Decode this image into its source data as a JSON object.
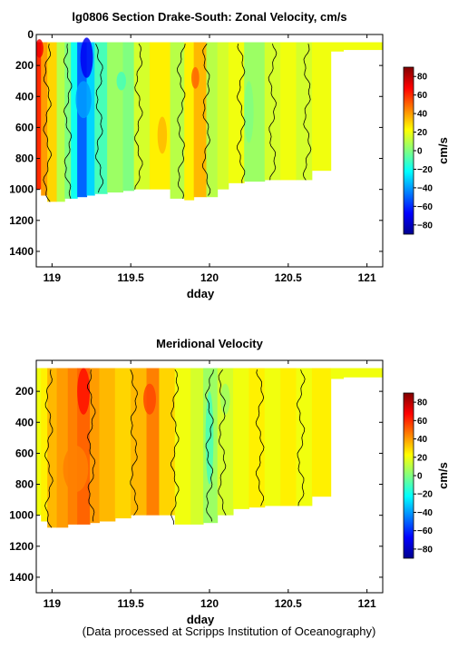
{
  "footer": "(Data processed at Scripps Institution of Oceanography)",
  "colormap": [
    "#00008f",
    "#0000ff",
    "#0080ff",
    "#00ffff",
    "#80ff80",
    "#ffff00",
    "#ff8000",
    "#ff0000",
    "#800000"
  ],
  "chart_data": [
    {
      "type": "heatmap",
      "title": "lg0806 Section Drake-South: Zonal Velocity, cm/s",
      "xlabel": "dday",
      "ylabel": "",
      "colorbar_label": "cm/s",
      "xlim": [
        118.9,
        121.1
      ],
      "ylim": [
        1500,
        0
      ],
      "xticks": [
        119,
        119.5,
        120,
        120.5,
        121
      ],
      "xtick_labels": [
        "119",
        "119.5",
        "120",
        "120.5",
        "121"
      ],
      "yticks": [
        0,
        200,
        400,
        600,
        800,
        1000,
        1200,
        1400
      ],
      "ytick_labels": [
        "0",
        "200",
        "400",
        "600",
        "800",
        "1000",
        "1200",
        "1400"
      ],
      "clim": [
        -90,
        90
      ],
      "cbticks": [
        80,
        60,
        40,
        20,
        0,
        -20,
        -40,
        -60,
        -80
      ],
      "cbtick_labels": [
        "80",
        "60",
        "40",
        "20",
        "0",
        "−20",
        "−40",
        "−60",
        "−80"
      ],
      "columns": [
        {
          "x0": 118.9,
          "x1": 118.93,
          "v": 60,
          "bottom": 1000
        },
        {
          "x0": 118.93,
          "x1": 118.97,
          "v": 40,
          "bottom": 1040
        },
        {
          "x0": 118.97,
          "x1": 119.03,
          "v": 30,
          "bottom": 1080
        },
        {
          "x0": 119.03,
          "x1": 119.08,
          "v": 10,
          "bottom": 1080
        },
        {
          "x0": 119.08,
          "x1": 119.12,
          "v": 0,
          "bottom": 1060
        },
        {
          "x0": 119.12,
          "x1": 119.16,
          "v": -20,
          "bottom": 1060
        },
        {
          "x0": 119.16,
          "x1": 119.22,
          "v": -50,
          "bottom": 1050
        },
        {
          "x0": 119.22,
          "x1": 119.27,
          "v": -30,
          "bottom": 1040
        },
        {
          "x0": 119.27,
          "x1": 119.35,
          "v": -10,
          "bottom": 1030
        },
        {
          "x0": 119.35,
          "x1": 119.45,
          "v": 5,
          "bottom": 1020
        },
        {
          "x0": 119.45,
          "x1": 119.52,
          "v": 0,
          "bottom": 1010
        },
        {
          "x0": 119.52,
          "x1": 119.62,
          "v": 15,
          "bottom": 1000
        },
        {
          "x0": 119.62,
          "x1": 119.75,
          "v": 25,
          "bottom": 1000
        },
        {
          "x0": 119.75,
          "x1": 119.84,
          "v": 10,
          "bottom": 1060
        },
        {
          "x0": 119.84,
          "x1": 119.9,
          "v": 25,
          "bottom": 1070
        },
        {
          "x0": 119.9,
          "x1": 119.98,
          "v": 35,
          "bottom": 1050
        },
        {
          "x0": 119.98,
          "x1": 120.05,
          "v": 10,
          "bottom": 1050
        },
        {
          "x0": 120.05,
          "x1": 120.12,
          "v": 15,
          "bottom": 1000
        },
        {
          "x0": 120.12,
          "x1": 120.22,
          "v": 20,
          "bottom": 960
        },
        {
          "x0": 120.22,
          "x1": 120.35,
          "v": 5,
          "bottom": 950
        },
        {
          "x0": 120.35,
          "x1": 120.45,
          "v": 15,
          "bottom": 940
        },
        {
          "x0": 120.45,
          "x1": 120.55,
          "v": 20,
          "bottom": 940
        },
        {
          "x0": 120.55,
          "x1": 120.65,
          "v": 15,
          "bottom": 940
        },
        {
          "x0": 120.65,
          "x1": 120.77,
          "v": 20,
          "bottom": 880
        },
        {
          "x0": 120.77,
          "x1": 120.85,
          "v": 20,
          "bottom": 110
        },
        {
          "x0": 120.85,
          "x1": 121.1,
          "v": 20,
          "bottom": 100
        }
      ],
      "patches": [
        {
          "x": 119.22,
          "y": 150,
          "rx": 0.04,
          "ry": 130,
          "v": -70
        },
        {
          "x": 119.2,
          "y": 420,
          "rx": 0.05,
          "ry": 120,
          "v": -40
        },
        {
          "x": 118.92,
          "y": 90,
          "rx": 0.025,
          "ry": 60,
          "v": 70
        },
        {
          "x": 119.91,
          "y": 280,
          "rx": 0.025,
          "ry": 70,
          "v": 50
        },
        {
          "x": 119.44,
          "y": 300,
          "rx": 0.03,
          "ry": 60,
          "v": -10
        },
        {
          "x": 120.25,
          "y": 500,
          "rx": 0.03,
          "ry": 200,
          "v": 0
        },
        {
          "x": 119.7,
          "y": 650,
          "rx": 0.03,
          "ry": 120,
          "v": 35
        }
      ],
      "contour_x": [
        118.97,
        119.1,
        119.3,
        119.55,
        119.82,
        119.98,
        120.2,
        120.4,
        120.62
      ]
    },
    {
      "type": "heatmap",
      "title": "Meridional Velocity",
      "xlabel": "dday",
      "ylabel": "",
      "colorbar_label": "cm/s",
      "xlim": [
        118.9,
        121.1
      ],
      "ylim": [
        1500,
        0
      ],
      "xticks": [
        119,
        119.5,
        120,
        120.5,
        121
      ],
      "xtick_labels": [
        "119",
        "119.5",
        "120",
        "120.5",
        "121"
      ],
      "yticks": [
        200,
        400,
        600,
        800,
        1000,
        1200,
        1400
      ],
      "ytick_labels": [
        "200",
        "400",
        "600",
        "800",
        "1000",
        "1200",
        "1400"
      ],
      "clim": [
        -90,
        90
      ],
      "cbticks": [
        80,
        60,
        40,
        20,
        0,
        -20,
        -40,
        -60,
        -80
      ],
      "cbtick_labels": [
        "80",
        "60",
        "40",
        "20",
        "0",
        "−20",
        "−40",
        "−60",
        "−80"
      ],
      "columns": [
        {
          "x0": 118.9,
          "x1": 118.93,
          "v": 20,
          "bottom": 1000
        },
        {
          "x0": 118.93,
          "x1": 118.97,
          "v": 25,
          "bottom": 1040
        },
        {
          "x0": 118.97,
          "x1": 119.03,
          "v": 35,
          "bottom": 1080
        },
        {
          "x0": 119.03,
          "x1": 119.1,
          "v": 40,
          "bottom": 1080
        },
        {
          "x0": 119.1,
          "x1": 119.16,
          "v": 45,
          "bottom": 1060
        },
        {
          "x0": 119.16,
          "x1": 119.24,
          "v": 50,
          "bottom": 1060
        },
        {
          "x0": 119.24,
          "x1": 119.3,
          "v": 40,
          "bottom": 1050
        },
        {
          "x0": 119.3,
          "x1": 119.4,
          "v": 35,
          "bottom": 1040
        },
        {
          "x0": 119.4,
          "x1": 119.5,
          "v": 30,
          "bottom": 1020
        },
        {
          "x0": 119.5,
          "x1": 119.6,
          "v": 35,
          "bottom": 1000
        },
        {
          "x0": 119.6,
          "x1": 119.68,
          "v": 45,
          "bottom": 1000
        },
        {
          "x0": 119.68,
          "x1": 119.78,
          "v": 30,
          "bottom": 1000
        },
        {
          "x0": 119.78,
          "x1": 119.88,
          "v": 20,
          "bottom": 1060
        },
        {
          "x0": 119.88,
          "x1": 119.96,
          "v": 15,
          "bottom": 1060
        },
        {
          "x0": 119.96,
          "x1": 120.05,
          "v": 5,
          "bottom": 1050
        },
        {
          "x0": 120.05,
          "x1": 120.15,
          "v": 15,
          "bottom": 1000
        },
        {
          "x0": 120.15,
          "x1": 120.25,
          "v": 20,
          "bottom": 960
        },
        {
          "x0": 120.25,
          "x1": 120.35,
          "v": 25,
          "bottom": 950
        },
        {
          "x0": 120.35,
          "x1": 120.45,
          "v": 20,
          "bottom": 940
        },
        {
          "x0": 120.45,
          "x1": 120.55,
          "v": 25,
          "bottom": 940
        },
        {
          "x0": 120.55,
          "x1": 120.65,
          "v": 20,
          "bottom": 940
        },
        {
          "x0": 120.65,
          "x1": 120.77,
          "v": 25,
          "bottom": 880
        },
        {
          "x0": 120.77,
          "x1": 120.85,
          "v": 20,
          "bottom": 120
        },
        {
          "x0": 120.85,
          "x1": 121.1,
          "v": 20,
          "bottom": 110
        }
      ],
      "patches": [
        {
          "x": 119.2,
          "y": 200,
          "rx": 0.04,
          "ry": 150,
          "v": 65
        },
        {
          "x": 119.62,
          "y": 250,
          "rx": 0.04,
          "ry": 100,
          "v": 55
        },
        {
          "x": 119.15,
          "y": 700,
          "rx": 0.08,
          "ry": 150,
          "v": 45
        },
        {
          "x": 120.0,
          "y": 500,
          "rx": 0.025,
          "ry": 300,
          "v": -10
        },
        {
          "x": 120.1,
          "y": 250,
          "rx": 0.03,
          "ry": 100,
          "v": 5
        }
      ],
      "contour_x": [
        118.98,
        119.25,
        119.52,
        119.78,
        120.0,
        120.08,
        120.32,
        120.58
      ]
    }
  ]
}
